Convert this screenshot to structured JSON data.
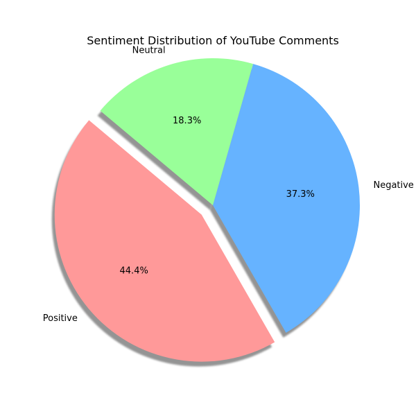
{
  "chart_data": {
    "type": "pie",
    "title": "Sentiment Distribution of YouTube Comments",
    "start_angle_deg": 140,
    "direction": "counterclockwise",
    "shadow": true,
    "slices": [
      {
        "label": "Positive",
        "value": 44.4,
        "pct_label": "44.4%",
        "color": "#ff9999",
        "explode": 0.1
      },
      {
        "label": "Negative",
        "value": 37.3,
        "pct_label": "37.3%",
        "color": "#66b3ff",
        "explode": 0
      },
      {
        "label": "Neutral",
        "value": 18.3,
        "pct_label": "18.3%",
        "color": "#99ff99",
        "explode": 0
      }
    ]
  }
}
